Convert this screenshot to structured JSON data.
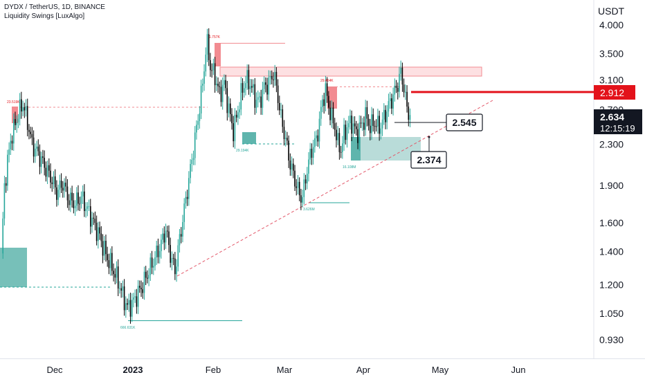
{
  "header": {
    "symbol_line": "DYDX / TetherUS, 1D, BINANCE",
    "indicator": "Liquidity Swings [LuxAlgo]"
  },
  "price_axis": {
    "currency": "USDT",
    "ticks": [
      "4.000",
      "3.500",
      "3.100",
      "2.700",
      "2.300",
      "1.900",
      "1.600",
      "1.400",
      "1.200",
      "1.050",
      "0.930"
    ]
  },
  "time_axis": {
    "labels": [
      "Dec",
      "2023",
      "Feb",
      "Mar",
      "Apr",
      "May",
      "Jun"
    ]
  },
  "badges": {
    "level_red": "2.912",
    "last_price": "2.634",
    "countdown": "12:15:19",
    "callout_upper": "2.545",
    "callout_lower": "2.374"
  },
  "liquidity_labels": {
    "l1": "23.519K",
    "l2": "1.757K",
    "l3": "29.194K",
    "l4": "29.464K",
    "l5": "16.108M",
    "l6": "3.626M",
    "l7": "666.631K"
  },
  "colors": {
    "up": "#26a69a",
    "down": "#000000",
    "supply": "#f28b91",
    "demand": "#5fb5ad",
    "level_red": "#e3121a",
    "trendline": "#e3586a"
  },
  "chart_data": {
    "type": "candlestick",
    "symbol": "DYDX / TetherUS",
    "interval": "1D",
    "exchange": "BINANCE",
    "y_scale": "log",
    "ylim": [
      0.85,
      4.3
    ],
    "x_ticks": [
      "Dec",
      "2023",
      "Feb",
      "Mar",
      "Apr",
      "May",
      "Jun"
    ],
    "y_ticks": [
      4.0,
      3.5,
      3.1,
      2.7,
      2.3,
      1.9,
      1.6,
      1.4,
      1.2,
      1.05,
      0.93
    ],
    "close_path": [
      [
        0,
        1.36
      ],
      [
        2,
        1.9
      ],
      [
        6,
        2.35
      ],
      [
        11,
        2.65
      ],
      [
        14,
        2.78
      ],
      [
        17,
        2.55
      ],
      [
        20,
        2.3
      ],
      [
        24,
        2.2
      ],
      [
        28,
        2.08
      ],
      [
        33,
        1.95
      ],
      [
        36,
        1.84
      ],
      [
        40,
        1.92
      ],
      [
        44,
        1.78
      ],
      [
        48,
        1.75
      ],
      [
        52,
        1.8
      ],
      [
        56,
        1.7
      ],
      [
        60,
        1.6
      ],
      [
        64,
        1.5
      ],
      [
        68,
        1.38
      ],
      [
        72,
        1.3
      ],
      [
        76,
        1.22
      ],
      [
        79,
        1.14
      ],
      [
        82,
        1.08
      ],
      [
        85,
        1.1
      ],
      [
        88,
        1.14
      ],
      [
        92,
        1.2
      ],
      [
        96,
        1.28
      ],
      [
        100,
        1.36
      ],
      [
        104,
        1.45
      ],
      [
        107,
        1.55
      ],
      [
        110,
        1.38
      ],
      [
        113,
        1.28
      ],
      [
        116,
        1.48
      ],
      [
        119,
        1.7
      ],
      [
        122,
        1.95
      ],
      [
        125,
        2.25
      ],
      [
        128,
        2.6
      ],
      [
        131,
        3.05
      ],
      [
        133,
        3.55
      ],
      [
        134,
        3.65
      ],
      [
        136,
        3.3
      ],
      [
        139,
        3.15
      ],
      [
        142,
        2.9
      ],
      [
        145,
        3.05
      ],
      [
        148,
        2.7
      ],
      [
        151,
        2.45
      ],
      [
        153,
        2.6
      ],
      [
        156,
        2.9
      ],
      [
        159,
        3.1
      ],
      [
        162,
        3.05
      ],
      [
        165,
        2.85
      ],
      [
        168,
        2.8
      ],
      [
        171,
        3.0
      ],
      [
        174,
        3.05
      ],
      [
        177,
        3.2
      ],
      [
        179,
        3.0
      ],
      [
        182,
        2.6
      ],
      [
        185,
        2.35
      ],
      [
        188,
        2.1
      ],
      [
        191,
        1.95
      ],
      [
        194,
        1.82
      ],
      [
        196,
        1.8
      ],
      [
        199,
        2.05
      ],
      [
        202,
        2.25
      ],
      [
        205,
        2.35
      ],
      [
        207,
        2.55
      ],
      [
        209,
        2.82
      ],
      [
        211,
        2.95
      ],
      [
        213,
        2.75
      ],
      [
        215,
        2.6
      ],
      [
        217,
        2.5
      ],
      [
        219,
        2.3
      ],
      [
        221,
        2.25
      ],
      [
        223,
        2.4
      ],
      [
        225,
        2.5
      ],
      [
        228,
        2.55
      ],
      [
        231,
        2.42
      ],
      [
        234,
        2.5
      ],
      [
        237,
        2.62
      ],
      [
        240,
        2.5
      ],
      [
        243,
        2.55
      ],
      [
        246,
        2.48
      ],
      [
        249,
        2.6
      ],
      [
        252,
        2.75
      ],
      [
        255,
        2.88
      ],
      [
        258,
        3.05
      ],
      [
        260,
        3.2
      ],
      [
        262,
        3.0
      ],
      [
        264,
        2.7
      ],
      [
        266,
        2.634
      ]
    ],
    "price_lines": [
      {
        "label": "2.912",
        "price": 2.912
      },
      {
        "label": "2.545",
        "price": 2.545
      },
      {
        "label": "2.374",
        "price": 2.374
      }
    ],
    "last_price": 2.634,
    "countdown": "12:15:19",
    "liquidity_levels": [
      {
        "label": "23.519K",
        "type": "high",
        "price": 2.88
      },
      {
        "label": "1.757K",
        "type": "high",
        "price": 3.65
      },
      {
        "label": "29.194K",
        "type": "low",
        "price": 2.31
      },
      {
        "label": "29.464K",
        "type": "high",
        "price": 2.95
      },
      {
        "label": "16.108M",
        "type": "low",
        "price": 2.2
      },
      {
        "label": "3.626M",
        "type": "low",
        "price": 1.77
      },
      {
        "label": "666.631K",
        "type": "low",
        "price": 1.02
      }
    ]
  }
}
